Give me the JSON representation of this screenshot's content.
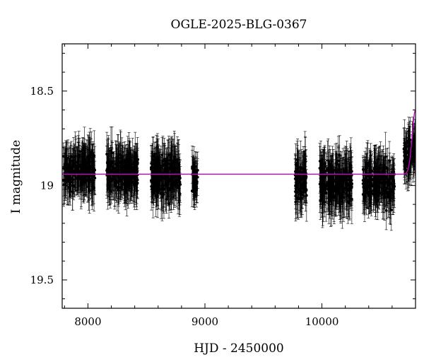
{
  "chart_data": {
    "type": "scatter",
    "title": "OGLE-2025-BLG-0367",
    "xlabel": "HJD - 2450000",
    "ylabel": "I magnitude",
    "xlim": [
      7780,
      10800
    ],
    "ylim": [
      19.65,
      18.25
    ],
    "y_inverted": true,
    "xticks": [
      8000,
      9000,
      10000
    ],
    "xtick_labels": [
      "8000",
      "9000",
      "10000"
    ],
    "yticks": [
      18.5,
      19,
      19.5
    ],
    "ytick_labels": [
      "18.5",
      "19",
      "19.5"
    ],
    "grid": false,
    "legend": "none",
    "series": [
      {
        "kind": "points_with_errorbars",
        "color": "#000000",
        "seasons": [
          {
            "x_range": [
              7790,
              8060
            ],
            "mean_mag": 18.92,
            "scatter": 0.09,
            "err": 0.1
          },
          {
            "x_range": [
              8160,
              8430
            ],
            "mean_mag": 18.93,
            "scatter": 0.09,
            "err": 0.1
          },
          {
            "x_range": [
              8540,
              8790
            ],
            "mean_mag": 18.95,
            "scatter": 0.1,
            "err": 0.1
          },
          {
            "x_range": [
              8890,
              8940
            ],
            "mean_mag": 18.97,
            "scatter": 0.07,
            "err": 0.09
          },
          {
            "x_range": [
              9770,
              9870
            ],
            "mean_mag": 18.97,
            "scatter": 0.11,
            "err": 0.1
          },
          {
            "x_range": [
              9980,
              10260
            ],
            "mean_mag": 18.99,
            "scatter": 0.1,
            "err": 0.11
          },
          {
            "x_range": [
              10350,
              10620
            ],
            "mean_mag": 18.98,
            "scatter": 0.1,
            "err": 0.1
          },
          {
            "x_range": [
              10700,
              10800
            ],
            "mean_mag": 18.84,
            "scatter": 0.08,
            "err": 0.09
          }
        ]
      },
      {
        "kind": "model_curve",
        "color": "#cc00cc",
        "baseline_mag": 18.94,
        "t0": 10800,
        "peak_mag": 18.6,
        "rise_width_days": 40
      }
    ]
  }
}
